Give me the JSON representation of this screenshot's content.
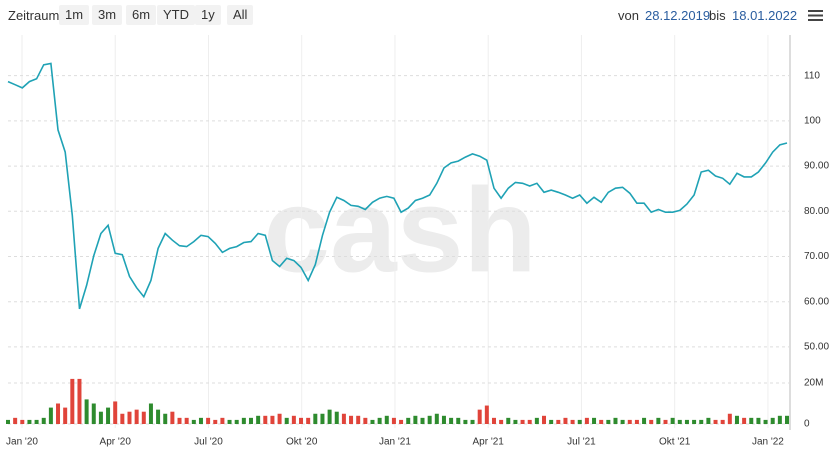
{
  "toolbar": {
    "label": "Zeitraum",
    "buttons": [
      "1m",
      "3m",
      "6m",
      "YTD",
      "1y",
      "All"
    ],
    "from_label": "von",
    "from": "28.12.2019",
    "to_label": "bis",
    "to": "18.01.2022"
  },
  "watermark": "cash",
  "chart_data": [
    {
      "type": "line",
      "color": "#1fa2b5",
      "values": [
        108.7,
        108,
        107.3,
        108.7,
        109.3,
        112.4,
        112.7,
        98,
        93.1,
        79.1,
        58.4,
        63.6,
        70.2,
        75.1,
        76.9,
        70.7,
        70.4,
        65.6,
        63.1,
        61.1,
        64.7,
        71.8,
        75.1,
        73.6,
        72.4,
        72.2,
        73.3,
        74.7,
        74.4,
        72.9,
        70.9,
        71.8,
        72.2,
        73.1,
        73.3,
        75.1,
        74.7,
        69.1,
        67.8,
        69.6,
        69.1,
        67.6,
        64.7,
        68.2,
        74.7,
        79.8,
        83.1,
        82.4,
        81.3,
        81.1,
        80.4,
        82,
        82.9,
        83.3,
        82.9,
        79.8,
        80.7,
        82.4,
        82.9,
        83.6,
        86.2,
        89.6,
        90.7,
        91.1,
        92,
        92.7,
        92.2,
        91.3,
        85.1,
        82.9,
        85.1,
        86.4,
        86.2,
        85.6,
        86.2,
        84.2,
        84.7,
        84.2,
        83.6,
        82.9,
        83.6,
        81.8,
        83.1,
        82,
        84.2,
        85.1,
        85.3,
        84,
        81.8,
        81.8,
        79.8,
        80.4,
        79.8,
        79.8,
        80.2,
        81.6,
        83.6,
        88.7,
        89.1,
        87.8,
        87.3,
        86,
        88.4,
        87.6,
        87.6,
        88.7,
        90.7,
        93.1,
        94.7,
        95.1
      ],
      "ylim": [
        46,
        119
      ],
      "yticks": [
        {
          "value": 50,
          "label": "50.00"
        },
        {
          "value": 60,
          "label": "60.00"
        },
        {
          "value": 70,
          "label": "70.00"
        },
        {
          "value": 80,
          "label": "80.00"
        },
        {
          "value": 90,
          "label": "90.00"
        },
        100,
        110
      ],
      "grid": true
    },
    {
      "type": "bar",
      "up_color": "#2e8b2e",
      "down_color": "#e0443a",
      "values": [
        2,
        3,
        2,
        2,
        2,
        3,
        8,
        10,
        8,
        22,
        22,
        12,
        10,
        6,
        8,
        11,
        5,
        6,
        7,
        6,
        10,
        7,
        5,
        6,
        3,
        3,
        2,
        3,
        3,
        2,
        3,
        2,
        2,
        3,
        3,
        4,
        4,
        4,
        5,
        3,
        4,
        3,
        3,
        5,
        5,
        7,
        6,
        5,
        4,
        4,
        3,
        2,
        3,
        4,
        3,
        2,
        3,
        4,
        3,
        4,
        5,
        4,
        3,
        3,
        2,
        2,
        7,
        9,
        3,
        2,
        3,
        2,
        2,
        2,
        3,
        4,
        2,
        2,
        3,
        2,
        2,
        3,
        3,
        2,
        2,
        3,
        2,
        2,
        2,
        3,
        2,
        3,
        2,
        3,
        2,
        2,
        2,
        2,
        3,
        2,
        2,
        5,
        4,
        3,
        3,
        3,
        2,
        3,
        4,
        4
      ],
      "ylim": [
        0,
        26
      ],
      "yticks": [
        0,
        {
          "value": 20,
          "label": "20M"
        }
      ],
      "xticks": [
        {
          "value": "2020-01",
          "label": "Jan '20"
        },
        {
          "value": "2020-04",
          "label": "Apr '20"
        },
        {
          "value": "2020-07",
          "label": "Jul '20"
        },
        {
          "value": "2020-10",
          "label": "Okt '20"
        },
        {
          "value": "2021-01",
          "label": "Jan '21"
        },
        {
          "value": "2021-04",
          "label": "Apr '21"
        },
        {
          "value": "2021-07",
          "label": "Jul '21"
        },
        {
          "value": "2021-10",
          "label": "Okt '21"
        },
        {
          "value": "2022-01",
          "label": "Jan '22"
        }
      ]
    }
  ]
}
